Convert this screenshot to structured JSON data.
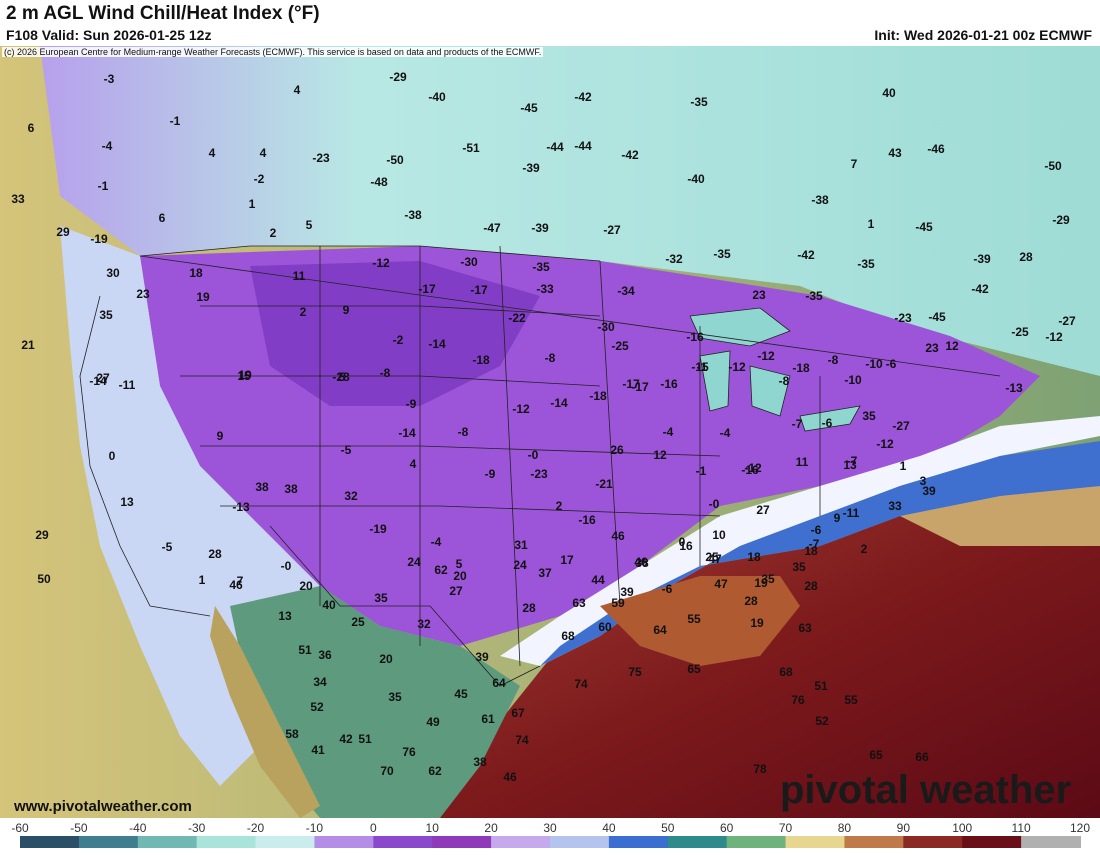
{
  "header": {
    "title": "2 m AGL Wind Chill/Heat Index (°F)",
    "valid": "F108 Valid: Sun 2026-01-25 12z",
    "init": "Init: Wed 2026-01-21 00z ECMWF"
  },
  "copyright": "(c) 2026 European Centre for Medium-range Weather Forecasts (ECMWF). This service is based on data and products of the ECMWF.",
  "footer": {
    "site": "www.pivotalweather.com",
    "brand": "pivotal weather"
  },
  "colorbar": {
    "ticks": [
      "-60",
      "-50",
      "-40",
      "-30",
      "-20",
      "-10",
      "0",
      "10",
      "20",
      "30",
      "40",
      "50",
      "60",
      "70",
      "80",
      "90",
      "100",
      "110",
      "120"
    ],
    "colors": [
      "#2a5068",
      "#3e7e8e",
      "#6fb9b2",
      "#a9e4da",
      "#c9ecec",
      "#b48ee6",
      "#8a48cc",
      "#8f3ab8",
      "#c6a9ec",
      "#b3c5ef",
      "#3a6ed0",
      "#2f8b8b",
      "#6fb37c",
      "#e6d690",
      "#c07a4a",
      "#8a2a22",
      "#6a0f18",
      "#b0b0b0",
      "#505050"
    ]
  },
  "map": {
    "values": [
      "-3",
      "-29",
      "4",
      "-40",
      "-45",
      "-42",
      "-35",
      "6",
      "-1",
      "4",
      "4",
      "-23",
      "-50",
      "-51",
      "-44",
      "-44",
      "-42",
      "40",
      "-4",
      "-2",
      "-48",
      "-39",
      "-40",
      "-38",
      "7",
      "43",
      "-46",
      "-50",
      "-1",
      "1",
      "-38",
      "33",
      "6",
      "5",
      "-47",
      "-39",
      "-27",
      "1",
      "-45",
      "-29",
      "29",
      "2",
      "-12",
      "-30",
      "-35",
      "-32",
      "-35",
      "-42",
      "-35",
      "-39",
      "28",
      "-19",
      "30",
      "18",
      "11",
      "-17",
      "-17",
      "-33",
      "-34",
      "23",
      "-35",
      "-42",
      "23",
      "19",
      "-22",
      "-30",
      "-25",
      "-23",
      "-45",
      "-25",
      "-27",
      "35",
      "2",
      "9",
      "-2",
      "-16",
      "-15",
      "-17",
      "21",
      "19",
      "5",
      "-8",
      "-14",
      "-18",
      "-8",
      "-12",
      "-18",
      "-8",
      "-10",
      "27",
      "15",
      "-28",
      "-9",
      "-12",
      "-14",
      "-18",
      "-17",
      "-16",
      "-1",
      "-12",
      "-8",
      "-10",
      "-6",
      "23",
      "12",
      "-12",
      "-14",
      "-14",
      "-8",
      "-4",
      "-4",
      "-7",
      "-6",
      "35",
      "-27",
      "-13",
      "-11",
      "-5",
      "4",
      "-0",
      "26",
      "12",
      "-1",
      "-16",
      "-12",
      "-7",
      "3",
      "0",
      "9",
      "38",
      "-9",
      "-23",
      "-21",
      "-12",
      "11",
      "13",
      "1",
      "13",
      "38",
      "32",
      "2",
      "-16",
      "-0",
      "27",
      "9",
      "33",
      "39",
      "29",
      "-13",
      "-19",
      "-4",
      "20",
      "31",
      "17",
      "46",
      "0",
      "10",
      "-6",
      "-11",
      "-5",
      "5",
      "24",
      "39",
      "16",
      "47",
      "18",
      "-7",
      "2",
      "28",
      "24",
      "25",
      "35",
      "50",
      "-0",
      "62",
      "37",
      "38",
      "-6",
      "19",
      "18",
      "46",
      "44",
      "46",
      "35",
      "1",
      "7",
      "20",
      "27",
      "28",
      "63",
      "59",
      "47",
      "28",
      "28",
      "40",
      "35",
      "13",
      "25",
      "32",
      "68",
      "60",
      "64",
      "55",
      "19",
      "63",
      "51",
      "36",
      "20",
      "39",
      "64",
      "74",
      "75",
      "65",
      "68",
      "51",
      "34",
      "35",
      "45",
      "67",
      "76",
      "55",
      "52",
      "49",
      "61",
      "74",
      "52",
      "58",
      "42",
      "51",
      "76",
      "38",
      "78",
      "65",
      "41",
      "66",
      "70",
      "62",
      "46"
    ],
    "land_color": "#9b4fd6",
    "ocean_warm_color": "#7a1418"
  }
}
